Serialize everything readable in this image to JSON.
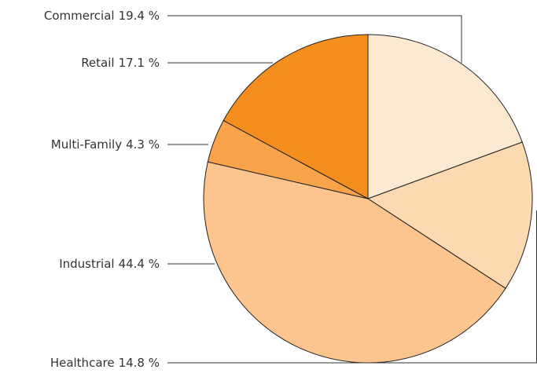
{
  "chart_data": {
    "type": "pie",
    "categories": [
      "Commercial",
      "Healthcare",
      "Industrial",
      "Multi-Family",
      "Retail"
    ],
    "values": [
      19.4,
      14.8,
      44.4,
      4.3,
      17.1
    ],
    "value_labels": [
      "19.4 %",
      "14.8 %",
      "44.4 %",
      "4.3 %",
      "17.1 %"
    ],
    "colors": [
      "#fde8d1",
      "#fbd9b1",
      "#fcc58f",
      "#f9a34b",
      "#f68e1f"
    ]
  }
}
